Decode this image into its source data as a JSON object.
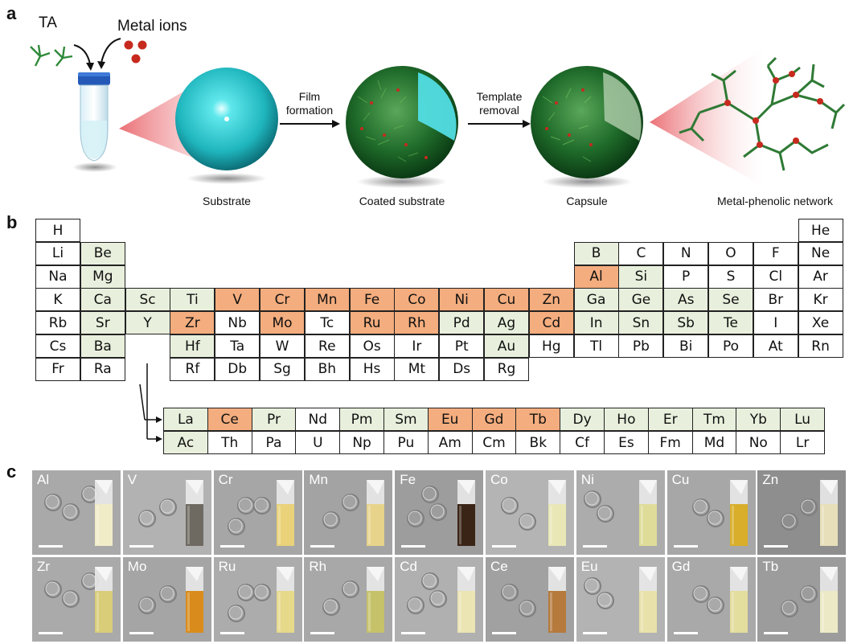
{
  "panel_a": {
    "letter": "a",
    "ta_label": "TA",
    "metal_label": "Metal ions",
    "step1": "Film\nformation",
    "step2": "Template\nremoval",
    "captions": [
      "Substrate",
      "Coated substrate",
      "Capsule",
      "Metal-phenolic network"
    ]
  },
  "panel_b": {
    "letter": "b",
    "colors": {
      "white": "#ffffff",
      "green": "#e8f0dd",
      "orange": "#f4ad7e"
    },
    "rows": [
      [
        [
          "H",
          "w",
          1
        ],
        [
          "He",
          "w",
          18
        ]
      ],
      [
        [
          "Li",
          "w",
          1
        ],
        [
          "Be",
          "g",
          2
        ],
        [
          "B",
          "g",
          13
        ],
        [
          "C",
          "w",
          14
        ],
        [
          "N",
          "w",
          15
        ],
        [
          "O",
          "w",
          16
        ],
        [
          "F",
          "w",
          17
        ],
        [
          "Ne",
          "w",
          18
        ]
      ],
      [
        [
          "Na",
          "w",
          1
        ],
        [
          "Mg",
          "g",
          2
        ],
        [
          "Al",
          "o",
          13
        ],
        [
          "Si",
          "g",
          14
        ],
        [
          "P",
          "w",
          15
        ],
        [
          "S",
          "w",
          16
        ],
        [
          "Cl",
          "w",
          17
        ],
        [
          "Ar",
          "w",
          18
        ]
      ],
      [
        [
          "K",
          "w",
          1
        ],
        [
          "Ca",
          "g",
          2
        ],
        [
          "Sc",
          "g",
          3
        ],
        [
          "Ti",
          "g",
          4
        ],
        [
          "V",
          "o",
          5
        ],
        [
          "Cr",
          "o",
          6
        ],
        [
          "Mn",
          "o",
          7
        ],
        [
          "Fe",
          "o",
          8
        ],
        [
          "Co",
          "o",
          9
        ],
        [
          "Ni",
          "o",
          10
        ],
        [
          "Cu",
          "o",
          11
        ],
        [
          "Zn",
          "o",
          12
        ],
        [
          "Ga",
          "g",
          13
        ],
        [
          "Ge",
          "g",
          14
        ],
        [
          "As",
          "g",
          15
        ],
        [
          "Se",
          "g",
          16
        ],
        [
          "Br",
          "w",
          17
        ],
        [
          "Kr",
          "w",
          18
        ]
      ],
      [
        [
          "Rb",
          "w",
          1
        ],
        [
          "Sr",
          "g",
          2
        ],
        [
          "Y",
          "g",
          3
        ],
        [
          "Zr",
          "o",
          4
        ],
        [
          "Nb",
          "w",
          5
        ],
        [
          "Mo",
          "o",
          6
        ],
        [
          "Tc",
          "w",
          7
        ],
        [
          "Ru",
          "o",
          8
        ],
        [
          "Rh",
          "o",
          9
        ],
        [
          "Pd",
          "g",
          10
        ],
        [
          "Ag",
          "g",
          11
        ],
        [
          "Cd",
          "o",
          12
        ],
        [
          "In",
          "g",
          13
        ],
        [
          "Sn",
          "g",
          14
        ],
        [
          "Sb",
          "g",
          15
        ],
        [
          "Te",
          "g",
          16
        ],
        [
          "I",
          "w",
          17
        ],
        [
          "Xe",
          "w",
          18
        ]
      ],
      [
        [
          "Cs",
          "w",
          1
        ],
        [
          "Ba",
          "g",
          2
        ],
        [
          "Hf",
          "g",
          4
        ],
        [
          "Ta",
          "w",
          5
        ],
        [
          "W",
          "w",
          6
        ],
        [
          "Re",
          "w",
          7
        ],
        [
          "Os",
          "w",
          8
        ],
        [
          "Ir",
          "w",
          9
        ],
        [
          "Pt",
          "w",
          10
        ],
        [
          "Au",
          "g",
          11
        ],
        [
          "Hg",
          "w",
          12
        ],
        [
          "Tl",
          "w",
          13
        ],
        [
          "Pb",
          "w",
          14
        ],
        [
          "Bi",
          "w",
          15
        ],
        [
          "Po",
          "w",
          16
        ],
        [
          "At",
          "w",
          17
        ],
        [
          "Rn",
          "w",
          18
        ]
      ],
      [
        [
          "Fr",
          "w",
          1
        ],
        [
          "Ra",
          "w",
          2
        ],
        [
          "Rf",
          "w",
          4
        ],
        [
          "Db",
          "w",
          5
        ],
        [
          "Sg",
          "w",
          6
        ],
        [
          "Bh",
          "w",
          7
        ],
        [
          "Hs",
          "w",
          8
        ],
        [
          "Mt",
          "w",
          9
        ],
        [
          "Ds",
          "w",
          10
        ],
        [
          "Rg",
          "w",
          11
        ]
      ]
    ],
    "lanthanides": [
      [
        "La",
        "g"
      ],
      [
        "Ce",
        "o"
      ],
      [
        "Pr",
        "g"
      ],
      [
        "Nd",
        "w"
      ],
      [
        "Pm",
        "g"
      ],
      [
        "Sm",
        "g"
      ],
      [
        "Eu",
        "o"
      ],
      [
        "Gd",
        "o"
      ],
      [
        "Tb",
        "o"
      ],
      [
        "Dy",
        "g"
      ],
      [
        "Ho",
        "g"
      ],
      [
        "Er",
        "g"
      ],
      [
        "Tm",
        "g"
      ],
      [
        "Yb",
        "g"
      ],
      [
        "Lu",
        "g"
      ]
    ],
    "actinides": [
      [
        "Ac",
        "g"
      ],
      [
        "Th",
        "w"
      ],
      [
        "Pa",
        "w"
      ],
      [
        "U",
        "w"
      ],
      [
        "Np",
        "w"
      ],
      [
        "Pu",
        "w"
      ],
      [
        "Am",
        "w"
      ],
      [
        "Cm",
        "w"
      ],
      [
        "Bk",
        "w"
      ],
      [
        "Cf",
        "w"
      ],
      [
        "Es",
        "w"
      ],
      [
        "Fm",
        "w"
      ],
      [
        "Md",
        "w"
      ],
      [
        "No",
        "w"
      ],
      [
        "Lr",
        "w"
      ]
    ]
  },
  "panel_c": {
    "letter": "c",
    "tiles": [
      {
        "el": "Al",
        "bg": "#a9a9a9",
        "liquid": "#f1ecc8"
      },
      {
        "el": "V",
        "bg": "#b2b2b2",
        "liquid": "#6e6a62"
      },
      {
        "el": "Cr",
        "bg": "#a6a6a6",
        "liquid": "#e9d27a"
      },
      {
        "el": "Mn",
        "bg": "#a3a3a3",
        "liquid": "#e7d38a"
      },
      {
        "el": "Fe",
        "bg": "#9d9d9d",
        "liquid": "#3a2416"
      },
      {
        "el": "Co",
        "bg": "#b4b4b4",
        "liquid": "#e9e7b6"
      },
      {
        "el": "Ni",
        "bg": "#acacac",
        "liquid": "#dedc98"
      },
      {
        "el": "Cu",
        "bg": "#a7a7a7",
        "liquid": "#d8ae2a"
      },
      {
        "el": "Zn",
        "bg": "#8e8e8e",
        "liquid": "#e6dfb9"
      },
      {
        "el": "Zr",
        "bg": "#aaaaaa",
        "liquid": "#d9cd7a"
      },
      {
        "el": "Mo",
        "bg": "#a5a5a5",
        "liquid": "#d98c1c"
      },
      {
        "el": "Ru",
        "bg": "#acacac",
        "liquid": "#e6d98a"
      },
      {
        "el": "Rh",
        "bg": "#a8a8a8",
        "liquid": "#c6c26a"
      },
      {
        "el": "Cd",
        "bg": "#b0b0b0",
        "liquid": "#ebe4b3"
      },
      {
        "el": "Ce",
        "bg": "#a1a1a1",
        "liquid": "#b57a3c"
      },
      {
        "el": "Eu",
        "bg": "#b3b3b3",
        "liquid": "#e8e1aa"
      },
      {
        "el": "Gd",
        "bg": "#a9a9a9",
        "liquid": "#e3dd9e"
      },
      {
        "el": "Tb",
        "bg": "#9c9c9c",
        "liquid": "#ece9c6"
      }
    ]
  }
}
